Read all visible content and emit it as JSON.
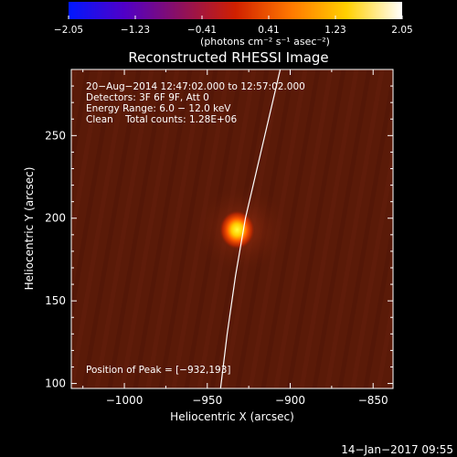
{
  "colorbar": {
    "ticks": [
      "−2.05",
      "−1.23",
      "−0.41",
      "0.41",
      "1.23",
      "2.05"
    ],
    "unit_label": "(photons cm⁻² s⁻¹ asec⁻²)",
    "stops": [
      "#0018ff",
      "#5000c8",
      "#8c1060",
      "#d02000",
      "#ff7800",
      "#ffd000",
      "#ffffff"
    ]
  },
  "chart_data": {
    "type": "heatmap",
    "title": "Reconstructed RHESSI Image",
    "xlabel": "Heliocentric X (arcsec)",
    "ylabel": "Heliocentric Y (arcsec)",
    "xlim": [
      -1032,
      -838
    ],
    "ylim": [
      97,
      290
    ],
    "xticks": [
      -1000,
      -950,
      -900,
      -850
    ],
    "yticks": [
      100,
      150,
      200,
      250
    ],
    "xtick_labels": [
      "−1000",
      "−950",
      "−900",
      "−850"
    ],
    "ytick_labels": [
      "100",
      "150",
      "200",
      "250"
    ],
    "grid": false,
    "peak_source": {
      "x": -932,
      "y": 193
    },
    "limb_curve": [
      [
        -942,
        97
      ],
      [
        -938,
        130
      ],
      [
        -933,
        165
      ],
      [
        -927,
        200
      ],
      [
        -920,
        230
      ],
      [
        -913,
        260
      ],
      [
        -906,
        290
      ]
    ],
    "background_color": "#5a1a08",
    "annotations": [
      "20−Aug−2014 12:47:02.000 to 12:57:02.000",
      "Detectors: 3F 6F 9F, Att 0",
      "Energy Range: 6.0 − 12.0 keV",
      "Clean    Total counts: 1.28E+06"
    ],
    "peak_label": "Position of Peak = [−932,193]"
  },
  "footer": {
    "timestamp": "14−Jan−2017 09:55"
  }
}
